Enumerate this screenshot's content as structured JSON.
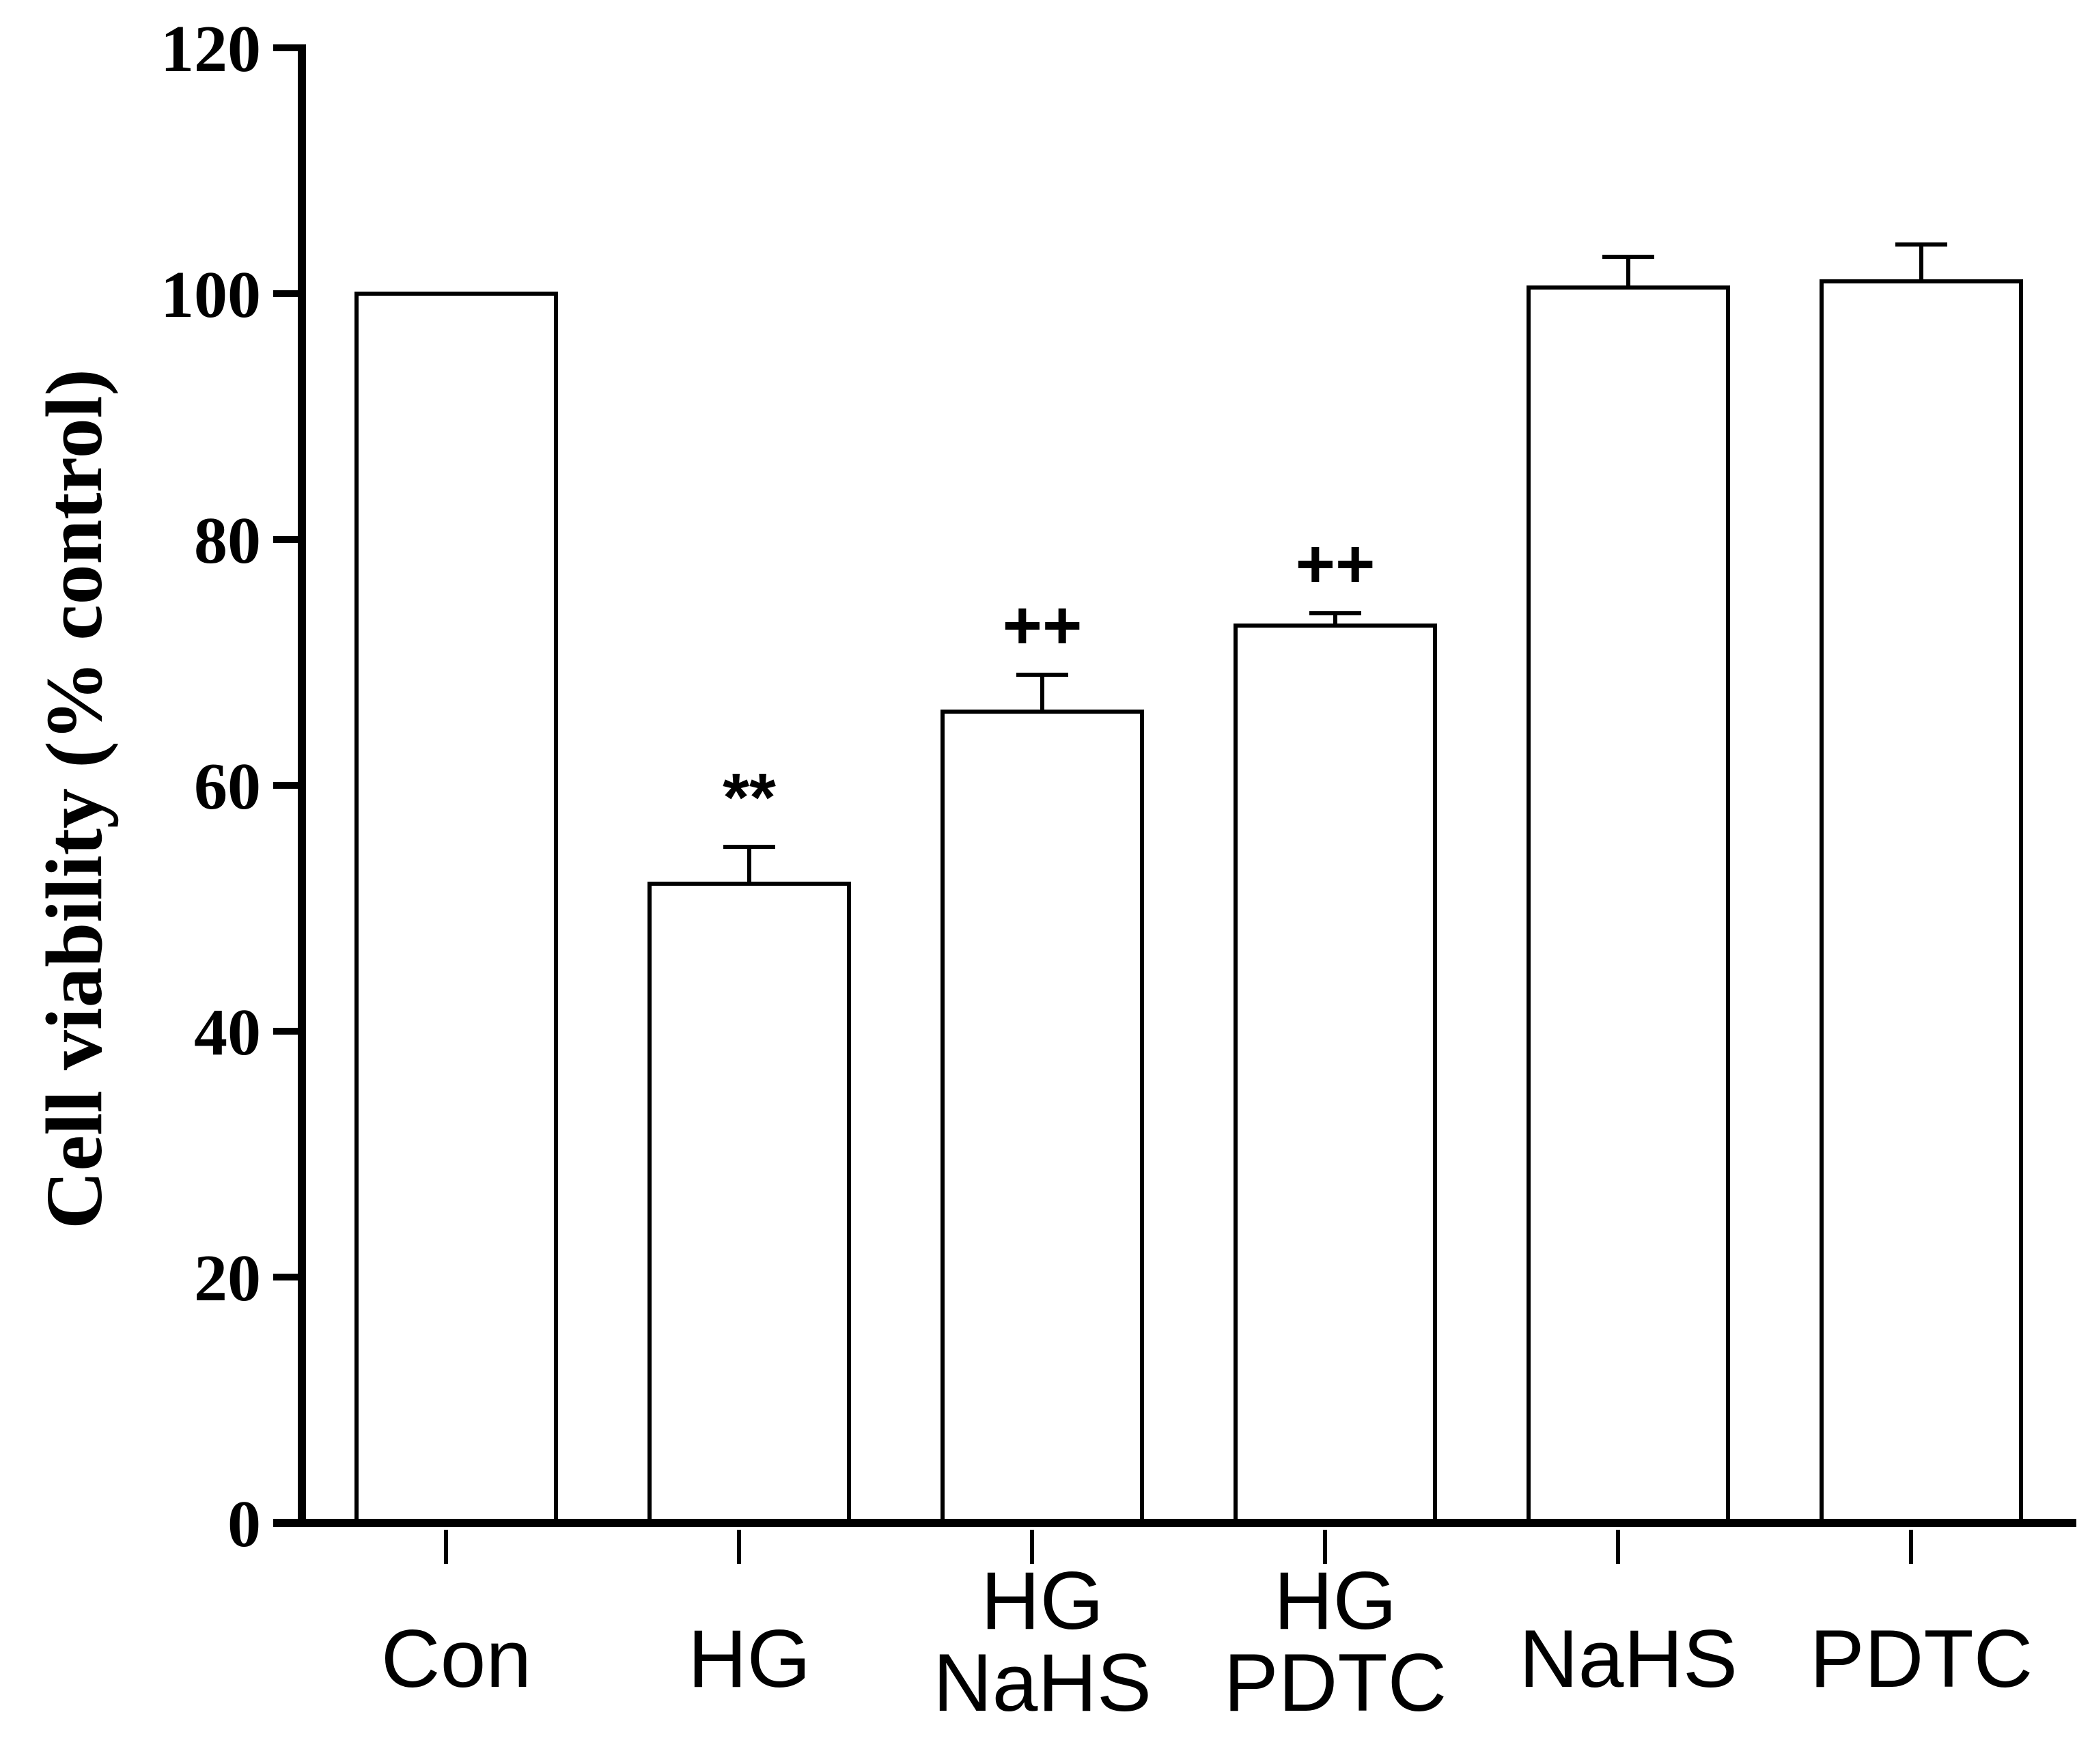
{
  "chart_data": {
    "type": "bar",
    "categories": [
      [
        "Con"
      ],
      [
        "HG"
      ],
      [
        "HG",
        "NaHS"
      ],
      [
        "HG",
        "PDTC"
      ],
      [
        "NaHS"
      ],
      [
        "PDTC"
      ]
    ],
    "values": [
      100,
      52,
      66,
      73,
      100.5,
      101
    ],
    "errors": [
      0,
      3,
      3,
      1,
      2.5,
      3
    ],
    "annotations": [
      "",
      "**",
      "++",
      "++",
      "",
      ""
    ],
    "ylabel": "Cell viability (% control)",
    "xlabel": "",
    "ylim": [
      0,
      120
    ],
    "yticks": [
      0,
      20,
      40,
      60,
      80,
      100,
      120
    ],
    "bar_fill": "#ffffff",
    "bar_stroke": "#000000",
    "grid": false
  }
}
